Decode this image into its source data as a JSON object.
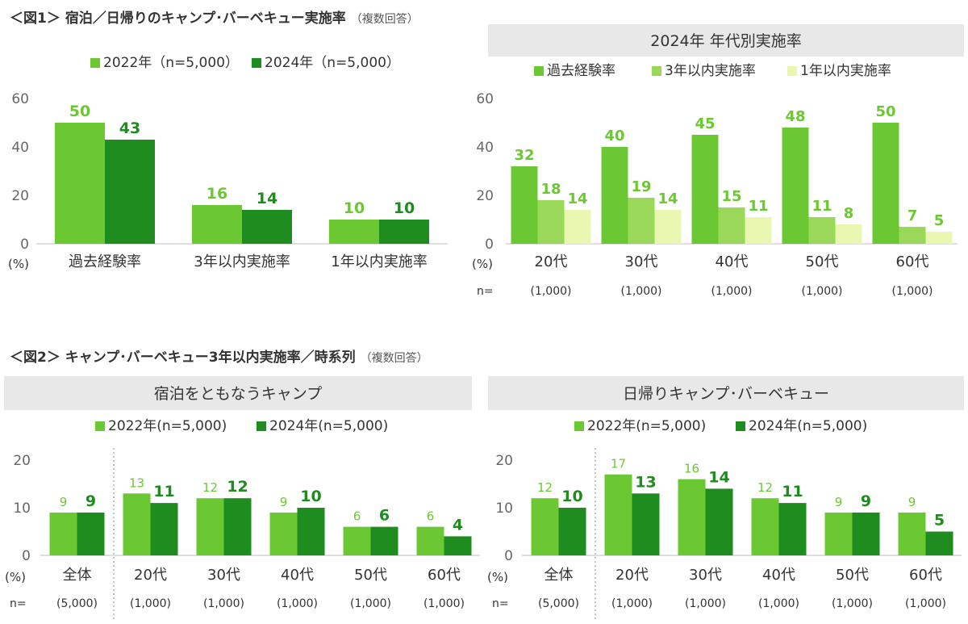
{
  "fig1": {
    "title": "＜図1＞ 宿泊／日帰りのキャンプ･バーベキュー実施率",
    "note": "（複数回答）"
  },
  "fig2": {
    "title": "＜図2＞ キャンプ･バーベキュー3年以内実施率／時系列",
    "note": "（複数回答）"
  },
  "colors": {
    "light_green": "#6cc832",
    "dark_green": "#1e8c1e",
    "mid_green": "#9ad85a",
    "pale_yellow": "#eaf7b0",
    "header_bg": "#e8e8e8",
    "label_light": "#6cc832",
    "label_dark": "#1e8c1e"
  },
  "chart_data": [
    {
      "id": "c1",
      "type": "bar",
      "title": "",
      "ylabel": "(%)",
      "ylim": [
        0,
        60
      ],
      "yticks": [
        0,
        20,
        40,
        60
      ],
      "categories": [
        "過去経験率",
        "3年以内実施率",
        "1年以内実施率"
      ],
      "series": [
        {
          "name": "2022年（n=5,000）",
          "values": [
            50,
            16,
            10
          ],
          "labels": [
            "50",
            "16",
            "10"
          ]
        },
        {
          "name": "2024年（n=5,000）",
          "values": [
            43,
            14,
            10
          ],
          "labels": [
            "43",
            "14",
            "10"
          ]
        }
      ]
    },
    {
      "id": "c2",
      "type": "bar",
      "title": "2024年 年代別実施率",
      "ylabel": "(%)",
      "n_label": "n=",
      "ylim": [
        0,
        60
      ],
      "yticks": [
        0,
        20,
        40,
        60
      ],
      "categories": [
        "20代",
        "30代",
        "40代",
        "50代",
        "60代"
      ],
      "n_values": [
        "(1,000)",
        "(1,000)",
        "(1,000)",
        "(1,000)",
        "(1,000)"
      ],
      "series": [
        {
          "name": "過去経験率",
          "values": [
            32,
            40,
            45,
            48,
            50
          ],
          "labels": [
            "32",
            "40",
            "45",
            "48",
            "50"
          ]
        },
        {
          "name": "3年以内実施率",
          "values": [
            18,
            19,
            15,
            11,
            7
          ],
          "labels": [
            "18",
            "19",
            "15",
            "11",
            "7"
          ]
        },
        {
          "name": "1年以内実施率",
          "values": [
            14,
            14,
            11,
            8,
            5
          ],
          "labels": [
            "14",
            "14",
            "11",
            "8",
            "5"
          ]
        }
      ]
    },
    {
      "id": "c3",
      "type": "bar",
      "title": "宿泊をともなうキャンプ",
      "ylabel": "(%)",
      "n_label": "n=",
      "ylim": [
        0,
        20
      ],
      "yticks": [
        0,
        10,
        20
      ],
      "categories": [
        "全体",
        "20代",
        "30代",
        "40代",
        "50代",
        "60代"
      ],
      "n_values": [
        "(5,000)",
        "(1,000)",
        "(1,000)",
        "(1,000)",
        "(1,000)",
        "(1,000)"
      ],
      "series": [
        {
          "name": "2022年(n=5,000)",
          "values": [
            9,
            13,
            12,
            9,
            6,
            6
          ],
          "labels": [
            "9",
            "13",
            "12",
            "9",
            "6",
            "6"
          ]
        },
        {
          "name": "2024年(n=5,000)",
          "values": [
            9,
            11,
            12,
            10,
            6,
            4
          ],
          "labels": [
            "9",
            "11",
            "12",
            "10",
            "6",
            "4"
          ]
        }
      ]
    },
    {
      "id": "c4",
      "type": "bar",
      "title": "日帰りキャンプ･バーベキュー",
      "ylabel": "(%)",
      "n_label": "n=",
      "ylim": [
        0,
        20
      ],
      "yticks": [
        0,
        10,
        20
      ],
      "categories": [
        "全体",
        "20代",
        "30代",
        "40代",
        "50代",
        "60代"
      ],
      "n_values": [
        "(5,000)",
        "(1,000)",
        "(1,000)",
        "(1,000)",
        "(1,000)",
        "(1,000)"
      ],
      "series": [
        {
          "name": "2022年(n=5,000)",
          "values": [
            12,
            17,
            16,
            12,
            9,
            9
          ],
          "labels": [
            "12",
            "17",
            "16",
            "12",
            "9",
            "9"
          ]
        },
        {
          "name": "2024年(n=5,000)",
          "values": [
            10,
            13,
            14,
            11,
            9,
            5
          ],
          "labels": [
            "10",
            "13",
            "14",
            "11",
            "9",
            "5"
          ]
        }
      ]
    }
  ]
}
